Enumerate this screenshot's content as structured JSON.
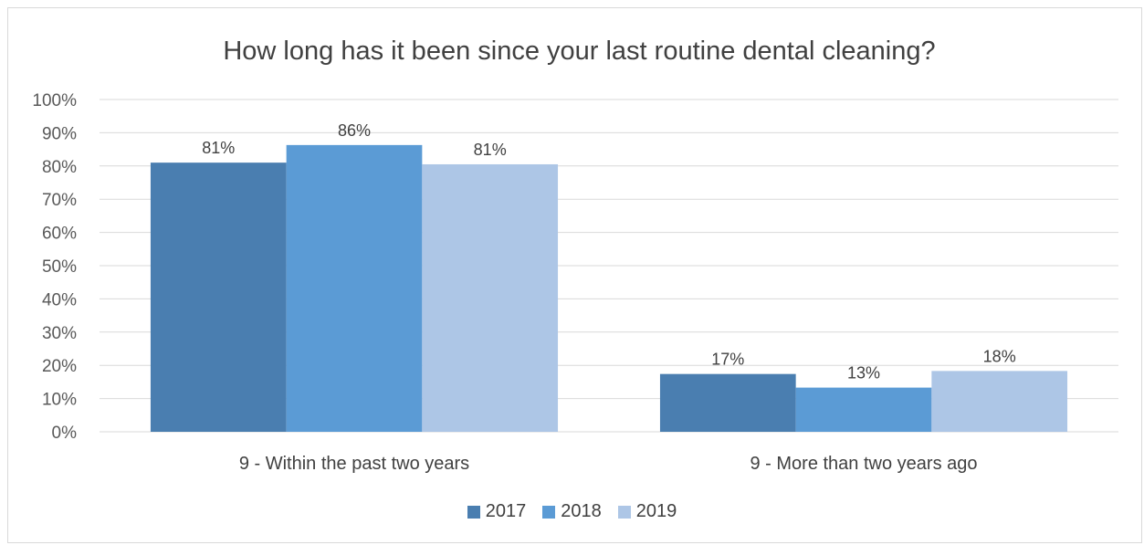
{
  "chart_data": {
    "type": "bar",
    "title": "How long has it been since your last routine dental cleaning?",
    "xlabel": "",
    "ylabel": "",
    "ylim": [
      0,
      100
    ],
    "y_ticks": [
      "0%",
      "10%",
      "20%",
      "30%",
      "40%",
      "50%",
      "60%",
      "70%",
      "80%",
      "90%",
      "100%"
    ],
    "y_tick_values": [
      0,
      10,
      20,
      30,
      40,
      50,
      60,
      70,
      80,
      90,
      100
    ],
    "grid": true,
    "legend_position": "bottom",
    "categories": [
      "9 - Within the past two years",
      "9 - More than two years ago"
    ],
    "series": [
      {
        "name": "2017",
        "values": [
          81,
          17.4
        ],
        "labels": [
          "81%",
          "17%"
        ],
        "color": "#4a7eb0"
      },
      {
        "name": "2018",
        "values": [
          86.3,
          13.3
        ],
        "labels": [
          "86%",
          "13%"
        ],
        "color": "#5b9bd5"
      },
      {
        "name": "2019",
        "values": [
          80.5,
          18.3
        ],
        "labels": [
          "81%",
          "18%"
        ],
        "color": "#adc6e6"
      }
    ]
  }
}
